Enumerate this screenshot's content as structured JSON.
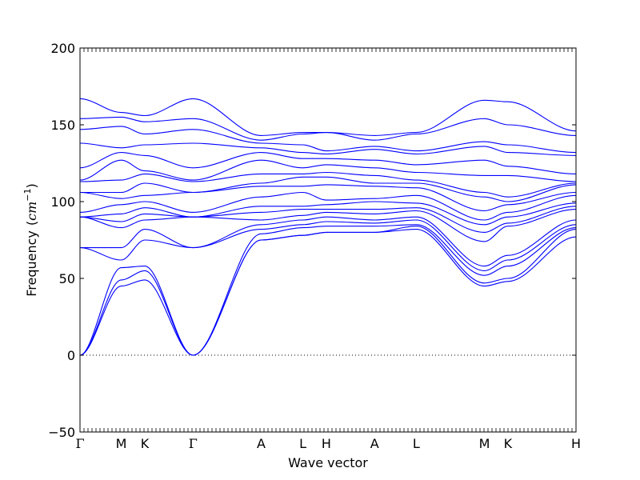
{
  "chart_data": {
    "type": "line",
    "title": "",
    "xlabel": "Wave vector",
    "ylabel": "Frequency",
    "ylabel_unit_open": "(",
    "ylabel_unit": "cm",
    "ylabel_unit_exp": "−1",
    "ylabel_unit_close": ")",
    "ylim": [
      -50,
      200
    ],
    "yticks": [
      "200",
      "150",
      "100",
      "50",
      "0",
      "−50"
    ],
    "ytick_values": [
      200,
      150,
      100,
      50,
      0,
      -50
    ],
    "zero_line": true,
    "line_color": "#0000ff",
    "grid": false,
    "legend": "none",
    "path": [
      {
        "label": "Γ",
        "x": 0.0
      },
      {
        "label": "M",
        "x": 1.0
      },
      {
        "label": "K",
        "x": 1.57
      },
      {
        "label": "Γ",
        "x": 2.74
      },
      {
        "label": "A",
        "x": 4.39
      },
      {
        "label": "L",
        "x": 5.4
      },
      {
        "label": "H",
        "x": 5.97
      },
      {
        "label": "A",
        "x": 7.14
      },
      {
        "label": "L",
        "x": 8.15
      },
      {
        "label": "M",
        "x": 9.8
      },
      {
        "label": "K",
        "x": 10.37
      },
      {
        "label": "H",
        "x": 12.02
      }
    ],
    "bands_at_points": [
      [
        0,
        0,
        0,
        70,
        70,
        90,
        90,
        90,
        93,
        106,
        106,
        113,
        114,
        122,
        138,
        147,
        154,
        167
      ],
      [
        45,
        49,
        57,
        62,
        70,
        83,
        87,
        92,
        98,
        102,
        106,
        114,
        127,
        132,
        135,
        149,
        155,
        158
      ],
      [
        49,
        55,
        58,
        75,
        82,
        88,
        92,
        96,
        100,
        104,
        112,
        118,
        120,
        130,
        137,
        144,
        152,
        156
      ],
      [
        0,
        0,
        0,
        70,
        70,
        90,
        90,
        90,
        93,
        106,
        106,
        113,
        114,
        122,
        138,
        147,
        154,
        167
      ],
      [
        75,
        75,
        79,
        82,
        85,
        88,
        93,
        97,
        103,
        110,
        112,
        118,
        127,
        132,
        135,
        138,
        140,
        143
      ],
      [
        78,
        78,
        83,
        85,
        88,
        91,
        95,
        97,
        106,
        110,
        116,
        118,
        122,
        128,
        132,
        137,
        144,
        145
      ],
      [
        80,
        80,
        84,
        87,
        90,
        93,
        95,
        98,
        101,
        111,
        116,
        119,
        124,
        128,
        131,
        133,
        145,
        145
      ],
      [
        80,
        80,
        84,
        86,
        88,
        92,
        95,
        100,
        102,
        110,
        112,
        117,
        122,
        127,
        134,
        136,
        140,
        143
      ],
      [
        82,
        84,
        85,
        88,
        90,
        94,
        96,
        99,
        104,
        109,
        112,
        114,
        119,
        124,
        131,
        133,
        144,
        145
      ],
      [
        45,
        47,
        52,
        55,
        58,
        74,
        80,
        85,
        88,
        94,
        103,
        106,
        117,
        127,
        136,
        139,
        154,
        166
      ],
      [
        48,
        50,
        58,
        62,
        65,
        84,
        86,
        90,
        93,
        98,
        100,
        103,
        117,
        123,
        132,
        137,
        150,
        165
      ],
      [
        77,
        82,
        83,
        85,
        88,
        95,
        97,
        99,
        104,
        106,
        111,
        112,
        113,
        118,
        130,
        132,
        143,
        146
      ]
    ]
  }
}
